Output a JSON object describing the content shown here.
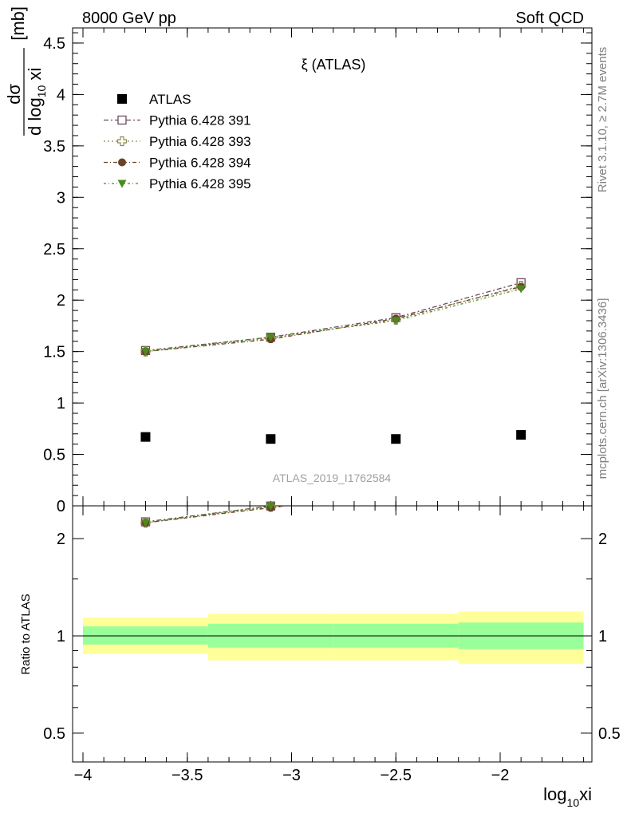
{
  "header": {
    "left": "8000 GeV pp",
    "right": "Soft QCD"
  },
  "side_labels": {
    "rivet": "Rivet 3.1.10, ≥ 2.7M events",
    "mcplots": "mcplots.cern.ch [arXiv:1306.3436]"
  },
  "watermark": "ATLAS_2019_I1762584",
  "chart_data": {
    "type": "scatter",
    "title": "ξ (ATLAS)",
    "ylabel_main": {
      "num": "dσ",
      "den_a": "d log",
      "den_sub": "10",
      "den_b": " xi",
      "unit": "[mb]"
    },
    "ylabel_ratio": "Ratio to ATLAS",
    "xlabel": {
      "main": "log",
      "sub": "10",
      "tail": "xi"
    },
    "xlim": [
      -4.0,
      -1.55
    ],
    "ylim_main": [
      0,
      4.7
    ],
    "ylim_ratio": [
      0.4,
      2.3
    ],
    "x_ticks": [
      {
        "v": -4,
        "label": "−4"
      },
      {
        "v": -3.5,
        "label": "−3.5"
      },
      {
        "v": -3,
        "label": "−3"
      },
      {
        "v": -2.5,
        "label": "−2.5"
      },
      {
        "v": -2,
        "label": "−2"
      }
    ],
    "y_ticks_main": [
      {
        "v": 0,
        "label": "0"
      },
      {
        "v": 0.5,
        "label": "0.5"
      },
      {
        "v": 1,
        "label": "1"
      },
      {
        "v": 1.5,
        "label": "1.5"
      },
      {
        "v": 2,
        "label": "2"
      },
      {
        "v": 2.5,
        "label": "2.5"
      },
      {
        "v": 3,
        "label": "3"
      },
      {
        "v": 3.5,
        "label": "3.5"
      },
      {
        "v": 4,
        "label": "4"
      },
      {
        "v": 4.5,
        "label": "4.5"
      }
    ],
    "y_ticks_ratio": [
      {
        "v": 0.5,
        "label": "0.5"
      },
      {
        "v": 1,
        "label": "1"
      },
      {
        "v": 2,
        "label": "2"
      }
    ],
    "x": [
      -3.7,
      -3.1,
      -2.5,
      -1.9
    ],
    "band_edges": [
      -4.0,
      -3.4,
      -2.8,
      -2.2,
      -1.6
    ],
    "bands": [
      {
        "inner": [
          0.94,
          1.07
        ],
        "outer": [
          0.88,
          1.14
        ]
      },
      {
        "inner": [
          0.92,
          1.09
        ],
        "outer": [
          0.84,
          1.17
        ]
      },
      {
        "inner": [
          0.92,
          1.09
        ],
        "outer": [
          0.84,
          1.17
        ]
      },
      {
        "inner": [
          0.91,
          1.1
        ],
        "outer": [
          0.82,
          1.19
        ]
      }
    ],
    "series": [
      {
        "name": "ATLAS",
        "marker": "square-filled",
        "color": "#000000",
        "line": false,
        "values": [
          0.67,
          0.65,
          0.65,
          0.69
        ]
      },
      {
        "name": "Pythia 6.428 391",
        "marker": "square-open",
        "color": "#6b4a5c",
        "dash": "6,3,2,3",
        "values": [
          1.51,
          1.64,
          1.83,
          2.17
        ]
      },
      {
        "name": "Pythia 6.428 393",
        "marker": "cross-open",
        "color": "#8c8c4a",
        "dash": "2,3",
        "values": [
          1.5,
          1.63,
          1.81,
          2.14
        ]
      },
      {
        "name": "Pythia 6.428 394",
        "marker": "circle-filled",
        "color": "#6b4226",
        "dash": "5,3,1,3",
        "values": [
          1.5,
          1.62,
          1.82,
          2.13
        ]
      },
      {
        "name": "Pythia 6.428 395",
        "marker": "triangle-down-filled",
        "color": "#4a8a1e",
        "dash": "3,3,1,3",
        "values": [
          1.5,
          1.64,
          1.8,
          2.11
        ]
      }
    ]
  }
}
